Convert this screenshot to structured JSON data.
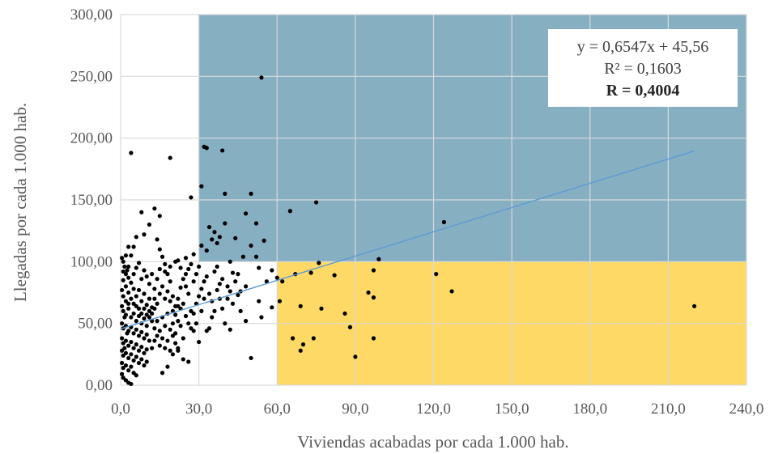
{
  "chart_data": {
    "type": "scatter",
    "title": "",
    "xlabel": "Viviendas acabadas por cada 1.000 hab.",
    "ylabel": "Llegadas por cada 1.000 hab.",
    "xlim": [
      0,
      240
    ],
    "ylim": [
      0,
      300
    ],
    "xticks": [
      "0,0",
      "30,0",
      "60,0",
      "90,0",
      "120,0",
      "150,0",
      "180,0",
      "210,0",
      "240,0"
    ],
    "yticks": [
      "0,00",
      "50,00",
      "100,00",
      "150,00",
      "200,00",
      "250,00",
      "300,00"
    ],
    "grid": true,
    "regions": [
      {
        "fill": "#86AFC2",
        "x": [
          30,
          240
        ],
        "y": [
          100,
          300
        ]
      },
      {
        "fill": "#FFD966",
        "x": [
          60,
          240
        ],
        "y": [
          0,
          100
        ]
      }
    ],
    "trendline": {
      "slope": 0.6547,
      "intercept": 45.56,
      "x_range": [
        0,
        220
      ],
      "color": "#5B9BD5"
    },
    "annotation": {
      "line1": "y = 0,6547x + 45,56",
      "line2": "R² = 0,1603",
      "line3": "R = 0,4004"
    },
    "point_color": "#000000",
    "points": [
      [
        54,
        249
      ],
      [
        4,
        188
      ],
      [
        19,
        184
      ],
      [
        32,
        193
      ],
      [
        33,
        192
      ],
      [
        39,
        190
      ],
      [
        50,
        155
      ],
      [
        40,
        155
      ],
      [
        31,
        161
      ],
      [
        27,
        152
      ],
      [
        48,
        139
      ],
      [
        65,
        141
      ],
      [
        75,
        148
      ],
      [
        52,
        131
      ],
      [
        40,
        131
      ],
      [
        34,
        128
      ],
      [
        36,
        124
      ],
      [
        38,
        120
      ],
      [
        35,
        118
      ],
      [
        37,
        115
      ],
      [
        44,
        119
      ],
      [
        55,
        117
      ],
      [
        50,
        113
      ],
      [
        31,
        113
      ],
      [
        33,
        109
      ],
      [
        28,
        106
      ],
      [
        25,
        103
      ],
      [
        22,
        101
      ],
      [
        47,
        104
      ],
      [
        52,
        104
      ],
      [
        42,
        100
      ],
      [
        53,
        95
      ],
      [
        58,
        93
      ],
      [
        56,
        84
      ],
      [
        60,
        87
      ],
      [
        62,
        84
      ],
      [
        67,
        90
      ],
      [
        73,
        91
      ],
      [
        76,
        99
      ],
      [
        82,
        89
      ],
      [
        97,
        93
      ],
      [
        99,
        102
      ],
      [
        121,
        90
      ],
      [
        124,
        132
      ],
      [
        127,
        76
      ],
      [
        220,
        64
      ],
      [
        95,
        75
      ],
      [
        97,
        71
      ],
      [
        86,
        58
      ],
      [
        88,
        47
      ],
      [
        77,
        62
      ],
      [
        69,
        64
      ],
      [
        66,
        38
      ],
      [
        70,
        33
      ],
      [
        69,
        28
      ],
      [
        74,
        38
      ],
      [
        90,
        23
      ],
      [
        97,
        38
      ],
      [
        61,
        68
      ],
      [
        58,
        63
      ],
      [
        53,
        68
      ],
      [
        54,
        55
      ],
      [
        50,
        22
      ],
      [
        46,
        60
      ],
      [
        48,
        52
      ],
      [
        40,
        50
      ],
      [
        42,
        45
      ],
      [
        45,
        73
      ],
      [
        43,
        91
      ],
      [
        41,
        70
      ],
      [
        39,
        62
      ],
      [
        38,
        82
      ],
      [
        37,
        77
      ],
      [
        36,
        60
      ],
      [
        35,
        55
      ],
      [
        34,
        46
      ],
      [
        33,
        44
      ],
      [
        32,
        70
      ],
      [
        31,
        60
      ],
      [
        30,
        35
      ],
      [
        29,
        50
      ],
      [
        28,
        44
      ],
      [
        26,
        19
      ],
      [
        16,
        10
      ],
      [
        18,
        15
      ],
      [
        22,
        28
      ],
      [
        20,
        25
      ],
      [
        24,
        21
      ],
      [
        27,
        60
      ],
      [
        26,
        74
      ],
      [
        25,
        80
      ],
      [
        24,
        86
      ],
      [
        23,
        79
      ],
      [
        22,
        64
      ],
      [
        21,
        57
      ],
      [
        20,
        50
      ],
      [
        19,
        84
      ],
      [
        18,
        90
      ],
      [
        17,
        98
      ],
      [
        16,
        104
      ],
      [
        15,
        110
      ],
      [
        14,
        118
      ],
      [
        13,
        143
      ],
      [
        15,
        137
      ],
      [
        11,
        130
      ],
      [
        9,
        122
      ],
      [
        8,
        140
      ],
      [
        6,
        120
      ],
      [
        5,
        112
      ],
      [
        4,
        105
      ],
      [
        3,
        112
      ],
      [
        2,
        105
      ],
      [
        1,
        100
      ],
      [
        0.5,
        103
      ],
      [
        1.5,
        96
      ],
      [
        2.5,
        93
      ],
      [
        3,
        87
      ],
      [
        4,
        83
      ],
      [
        5,
        90
      ],
      [
        6,
        95
      ],
      [
        7,
        99
      ],
      [
        8,
        86
      ],
      [
        9,
        93
      ],
      [
        10,
        88
      ],
      [
        11,
        82
      ],
      [
        12,
        90
      ],
      [
        13,
        78
      ],
      [
        14,
        86
      ],
      [
        15,
        74
      ],
      [
        16,
        80
      ],
      [
        17,
        70
      ],
      [
        18,
        76
      ],
      [
        19,
        68
      ],
      [
        20,
        72
      ],
      [
        21,
        64
      ],
      [
        22,
        70
      ],
      [
        23,
        62
      ],
      [
        24,
        66
      ],
      [
        1,
        85
      ],
      [
        2,
        80
      ],
      [
        3,
        75
      ],
      [
        4,
        70
      ],
      [
        5,
        66
      ],
      [
        6,
        72
      ],
      [
        7,
        77
      ],
      [
        8,
        68
      ],
      [
        9,
        74
      ],
      [
        10,
        65
      ],
      [
        11,
        70
      ],
      [
        12,
        63
      ],
      [
        1,
        60
      ],
      [
        2,
        57
      ],
      [
        3,
        62
      ],
      [
        4,
        55
      ],
      [
        5,
        58
      ],
      [
        6,
        52
      ],
      [
        7,
        56
      ],
      [
        8,
        50
      ],
      [
        9,
        54
      ],
      [
        10,
        48
      ],
      [
        11,
        55
      ],
      [
        12,
        52
      ],
      [
        0.5,
        50
      ],
      [
        1,
        46
      ],
      [
        2,
        48
      ],
      [
        3,
        44
      ],
      [
        4,
        47
      ],
      [
        5,
        42
      ],
      [
        6,
        45
      ],
      [
        7,
        40
      ],
      [
        8,
        43
      ],
      [
        9,
        38
      ],
      [
        10,
        41
      ],
      [
        11,
        36
      ],
      [
        0.5,
        38
      ],
      [
        1,
        34
      ],
      [
        2,
        36
      ],
      [
        3,
        32
      ],
      [
        4,
        35
      ],
      [
        5,
        30
      ],
      [
        6,
        33
      ],
      [
        7,
        28
      ],
      [
        8,
        31
      ],
      [
        9,
        26
      ],
      [
        10,
        29
      ],
      [
        12,
        30
      ],
      [
        0.5,
        28
      ],
      [
        1,
        24
      ],
      [
        2,
        26
      ],
      [
        3,
        22
      ],
      [
        4,
        25
      ],
      [
        5,
        20
      ],
      [
        6,
        23
      ],
      [
        7,
        18
      ],
      [
        8,
        21
      ],
      [
        9,
        16
      ],
      [
        10,
        19
      ],
      [
        0.5,
        18
      ],
      [
        1,
        14
      ],
      [
        2,
        16
      ],
      [
        3,
        12
      ],
      [
        4,
        15
      ],
      [
        5,
        10
      ],
      [
        6,
        8
      ],
      [
        1,
        6
      ],
      [
        2,
        4
      ],
      [
        3,
        2
      ],
      [
        0.5,
        9
      ],
      [
        4,
        1
      ],
      [
        13,
        46
      ],
      [
        14,
        52
      ],
      [
        15,
        44
      ],
      [
        16,
        55
      ],
      [
        17,
        48
      ],
      [
        18,
        58
      ],
      [
        19,
        45
      ],
      [
        20,
        60
      ],
      [
        21,
        42
      ],
      [
        22,
        52
      ],
      [
        23,
        48
      ],
      [
        13,
        36
      ],
      [
        14,
        40
      ],
      [
        15,
        32
      ],
      [
        16,
        38
      ],
      [
        17,
        30
      ],
      [
        18,
        36
      ],
      [
        19,
        28
      ],
      [
        20,
        40
      ],
      [
        21,
        34
      ],
      [
        22,
        30
      ],
      [
        24,
        38
      ],
      [
        25,
        56
      ],
      [
        26,
        50
      ],
      [
        27,
        46
      ],
      [
        28,
        58
      ],
      [
        29,
        66
      ],
      [
        30,
        72
      ],
      [
        31,
        78
      ],
      [
        32,
        84
      ],
      [
        33,
        88
      ],
      [
        34,
        74
      ],
      [
        35,
        68
      ],
      [
        36,
        92
      ],
      [
        37,
        96
      ],
      [
        38,
        70
      ],
      [
        39,
        86
      ],
      [
        41,
        80
      ],
      [
        42,
        76
      ],
      [
        43,
        66
      ],
      [
        44,
        84
      ],
      [
        45,
        90
      ],
      [
        46,
        76
      ],
      [
        48,
        80
      ],
      [
        25,
        90
      ],
      [
        26,
        94
      ],
      [
        27,
        98
      ],
      [
        28,
        84
      ],
      [
        29,
        90
      ],
      [
        30,
        96
      ],
      [
        23,
        95
      ],
      [
        21,
        100
      ],
      [
        19,
        96
      ],
      [
        17,
        92
      ],
      [
        15,
        94
      ],
      [
        1,
        72
      ],
      [
        2,
        68
      ],
      [
        3,
        66
      ],
      [
        2,
        90
      ],
      [
        1,
        92
      ],
      [
        3,
        96
      ],
      [
        0.5,
        77
      ],
      [
        0.5,
        64
      ],
      [
        1.5,
        55
      ],
      [
        2.5,
        42
      ],
      [
        1.5,
        30
      ],
      [
        5,
        78
      ],
      [
        6,
        64
      ],
      [
        7,
        62
      ],
      [
        8,
        58
      ],
      [
        9,
        62
      ],
      [
        10,
        57
      ],
      [
        11,
        60
      ],
      [
        12,
        58
      ],
      [
        13,
        62
      ],
      [
        14,
        66
      ],
      [
        13,
        70
      ]
    ]
  }
}
